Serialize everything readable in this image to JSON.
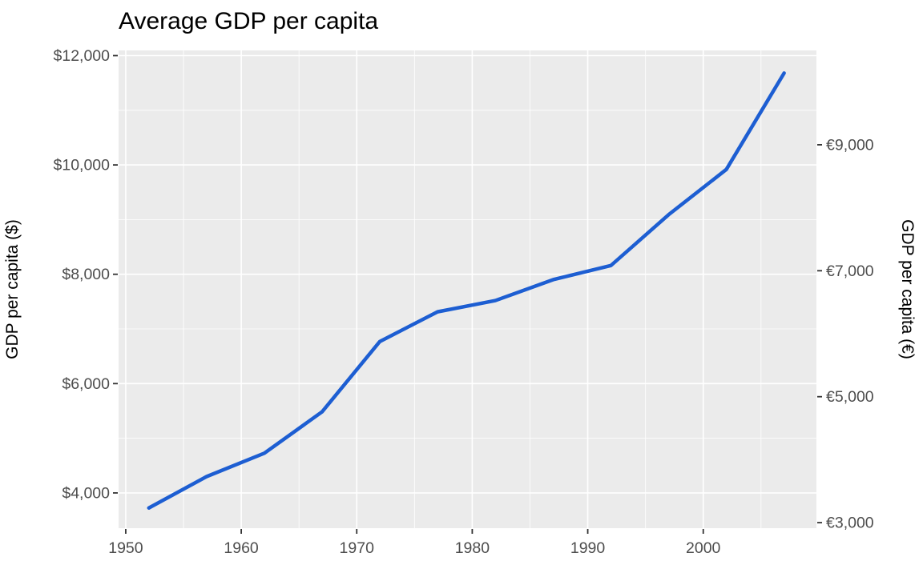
{
  "chart_data": {
    "type": "line",
    "title": "Average GDP per capita",
    "xlabel": "",
    "ylabel_left": "GDP per capita ($)",
    "ylabel_right": "GDP per capita (€)",
    "x": [
      1952,
      1957,
      1962,
      1967,
      1972,
      1977,
      1982,
      1987,
      1992,
      1997,
      2002,
      2007
    ],
    "series": [
      {
        "name": "average-gdp-per-capita",
        "values": [
          3725,
          4299,
          4726,
          5484,
          6770,
          7313,
          7519,
          7901,
          8159,
          9090,
          9918,
          11680
        ]
      }
    ],
    "x_ticks": [
      {
        "value": 1950,
        "label": "1950"
      },
      {
        "value": 1960,
        "label": "1960"
      },
      {
        "value": 1970,
        "label": "1970"
      },
      {
        "value": 1980,
        "label": "1980"
      },
      {
        "value": 1990,
        "label": "1990"
      },
      {
        "value": 2000,
        "label": "2000"
      }
    ],
    "x_minor_ticks": [
      1955,
      1965,
      1975,
      1985,
      1995,
      2005
    ],
    "y_ticks_left": [
      {
        "value": 4000,
        "label": "$4,000"
      },
      {
        "value": 6000,
        "label": "$6,000"
      },
      {
        "value": 8000,
        "label": "$8,000"
      },
      {
        "value": 10000,
        "label": "$10,000"
      },
      {
        "value": 12000,
        "label": "$12,000"
      }
    ],
    "y_minor_ticks": [
      5000,
      7000,
      9000,
      11000
    ],
    "y_ticks_right": [
      {
        "value": 3000,
        "label": "€3,000"
      },
      {
        "value": 5000,
        "label": "€5,000"
      },
      {
        "value": 7000,
        "label": "€7,000"
      },
      {
        "value": 9000,
        "label": "€9,000"
      }
    ],
    "right_axis_euro_per_dollar": 0.868,
    "xlim": [
      1949.38,
      2009.8
    ],
    "ylim": [
      3355,
      12095
    ],
    "grid": true,
    "legend_position": "none",
    "colors": {
      "line": "#1d5ed2",
      "panel_background": "#ebebeb",
      "gridline": "#ffffff",
      "tick_mark": "#333333",
      "tick_label": "#4d4d4d",
      "title_text": "#000000"
    }
  }
}
